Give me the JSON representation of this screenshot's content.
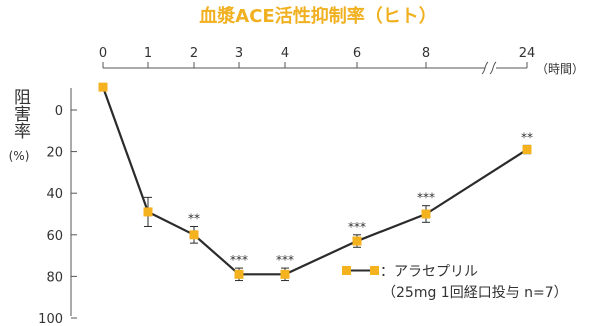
{
  "chart_data": {
    "type": "line",
    "title": "血漿ACE活性抑制率（ヒト）",
    "xlabel": "（時間）",
    "ylabel": "阻害率",
    "ylabel_unit": "(%)",
    "x_ticks": [
      "0",
      "1",
      "2",
      "3",
      "4",
      "6",
      "8",
      "24"
    ],
    "y_ticks": [
      "0",
      "20",
      "40",
      "60",
      "80",
      "100"
    ],
    "ylim": [
      0,
      100
    ],
    "y_inverted": true,
    "x_axis_break": true,
    "series": [
      {
        "name": "：アラセプリル",
        "note": "（25mg 1回経口投与 n=7）",
        "x": [
          "0",
          "1",
          "2",
          "3",
          "4",
          "6",
          "8",
          "24"
        ],
        "values": [
          -11,
          49,
          60,
          79,
          79,
          63,
          50,
          19
        ],
        "errors": [
          0,
          7,
          4,
          3,
          3,
          3,
          4,
          2
        ],
        "significance": [
          "",
          "",
          "**",
          "***",
          "***",
          "***",
          "***",
          "**"
        ]
      }
    ],
    "colors": {
      "title": "#f0b020",
      "marker": "#f5b21f",
      "line": "#2b2b2b",
      "axis": "#555555",
      "text": "#333333"
    }
  }
}
